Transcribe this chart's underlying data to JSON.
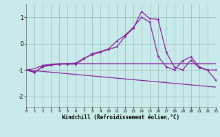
{
  "bg_color": "#c8eaea",
  "grid_color": "#9bbcbc",
  "line_color": "#882299",
  "xlabel": "Windchill (Refroidissement éolien,°C)",
  "xlim": [
    0,
    23
  ],
  "ylim": [
    -2.4,
    1.5
  ],
  "yticks": [
    -2,
    -1,
    0,
    1
  ],
  "xticks": [
    0,
    1,
    2,
    3,
    4,
    5,
    6,
    7,
    8,
    9,
    10,
    11,
    12,
    13,
    14,
    15,
    16,
    17,
    18,
    19,
    20,
    21,
    22,
    23
  ],
  "curve1_x": [
    0,
    1,
    2,
    3,
    4,
    5,
    6,
    7,
    8,
    9,
    10,
    11,
    12,
    13,
    14,
    15,
    16,
    17,
    18,
    19,
    20,
    21,
    22,
    23
  ],
  "curve1_y": [
    -1.0,
    -1.1,
    -0.85,
    -0.8,
    -0.78,
    -0.76,
    -0.74,
    -0.55,
    -0.42,
    -0.32,
    -0.22,
    -0.12,
    0.28,
    0.58,
    1.22,
    0.95,
    0.92,
    -0.32,
    -0.9,
    -1.0,
    -0.62,
    -0.92,
    -1.0,
    -1.38
  ],
  "curve2_x": [
    0,
    1,
    2,
    3,
    4,
    5,
    6,
    7,
    8,
    9,
    10,
    11,
    12,
    13,
    14,
    15,
    16,
    17,
    18,
    19,
    20,
    21,
    22,
    23
  ],
  "curve2_y": [
    -1.0,
    -0.95,
    -0.82,
    -0.78,
    -0.76,
    -0.76,
    -0.76,
    -0.76,
    -0.76,
    -0.76,
    -0.76,
    -0.76,
    -0.76,
    -0.76,
    -0.76,
    -0.76,
    -0.76,
    -0.76,
    -0.76,
    -0.76,
    -0.76,
    -0.76,
    -0.76,
    -0.76
  ],
  "curve3_x": [
    0,
    23
  ],
  "curve3_y": [
    -1.0,
    -1.65
  ],
  "curve4_x": [
    0,
    1,
    2,
    3,
    4,
    5,
    6,
    7,
    8,
    9,
    10,
    11,
    12,
    13,
    14,
    15,
    16,
    17,
    18,
    19,
    20,
    21,
    22,
    23
  ],
  "curve4_y": [
    -1.0,
    -1.08,
    -0.88,
    -0.82,
    -0.78,
    -0.78,
    -0.78,
    -0.58,
    -0.38,
    -0.3,
    -0.2,
    0.1,
    0.32,
    0.62,
    1.0,
    0.82,
    -0.48,
    -0.88,
    -1.0,
    -0.65,
    -0.5,
    -0.88,
    -1.0,
    -1.0
  ]
}
